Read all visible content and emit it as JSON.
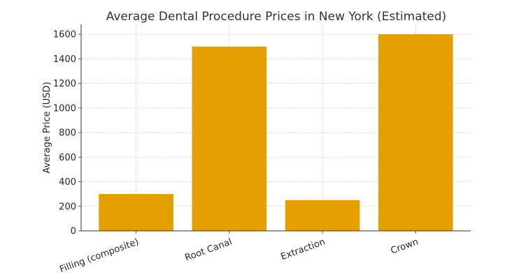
{
  "chart_data": {
    "type": "bar",
    "title": "Average Dental Procedure Prices in New York (Estimated)",
    "xlabel": "",
    "ylabel": "Average Price (USD)",
    "categories": [
      "Filling (composite)",
      "Root Canal",
      "Extraction",
      "Crown"
    ],
    "values": [
      300,
      1500,
      250,
      1600
    ],
    "ylim": [
      0,
      1680
    ],
    "yticks": [
      0,
      200,
      400,
      600,
      800,
      1000,
      1200,
      1400,
      1600
    ],
    "grid": true,
    "bar_color": "#E69F00",
    "xtick_rotation": 20
  }
}
